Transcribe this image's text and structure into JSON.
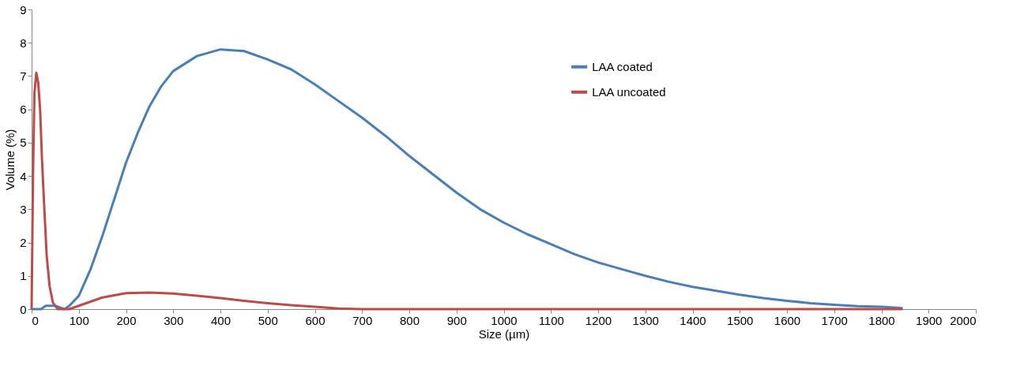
{
  "chart_data": {
    "type": "line",
    "xlabel": "Size (µm)",
    "ylabel": "Volume (%)",
    "xlim": [
      0,
      2000
    ],
    "xticks": [
      0,
      100,
      200,
      300,
      400,
      500,
      600,
      700,
      800,
      900,
      1000,
      1100,
      1200,
      1300,
      1400,
      1500,
      1600,
      1700,
      1800,
      1900,
      2000
    ],
    "ylim": [
      0,
      9
    ],
    "yticks": [
      0,
      1,
      2,
      3,
      4,
      5,
      6,
      7,
      8,
      9
    ],
    "grid": false,
    "legend": "top right",
    "marker": "none",
    "line_style": "solid",
    "series": [
      {
        "name": "LAA coated",
        "color": "#4a7ebb",
        "x": [
          0,
          20,
          30,
          50,
          60,
          70,
          80,
          100,
          125,
          150,
          175,
          200,
          225,
          250,
          275,
          300,
          350,
          400,
          450,
          500,
          550,
          600,
          650,
          700,
          750,
          800,
          850,
          900,
          950,
          1000,
          1050,
          1100,
          1150,
          1200,
          1250,
          1300,
          1350,
          1400,
          1450,
          1500,
          1550,
          1600,
          1650,
          1700,
          1750,
          1800,
          1845
        ],
        "values": [
          0,
          0,
          0.1,
          0.1,
          0.05,
          0,
          0.1,
          0.4,
          1.2,
          2.2,
          3.3,
          4.4,
          5.3,
          6.1,
          6.7,
          7.15,
          7.6,
          7.8,
          7.75,
          7.5,
          7.2,
          6.75,
          6.25,
          5.75,
          5.2,
          4.6,
          4.05,
          3.5,
          3.0,
          2.6,
          2.25,
          1.95,
          1.65,
          1.4,
          1.2,
          1.0,
          0.82,
          0.67,
          0.55,
          0.43,
          0.33,
          0.25,
          0.18,
          0.13,
          0.09,
          0.07,
          0.03
        ]
      },
      {
        "name": "LAA uncoated",
        "color": "#be4b48",
        "x": [
          0,
          3,
          6,
          10,
          14,
          18,
          22,
          27,
          32,
          38,
          45,
          55,
          80,
          100,
          150,
          200,
          250,
          300,
          350,
          400,
          450,
          500,
          550,
          600,
          650,
          700,
          1000,
          1500,
          1845
        ],
        "values": [
          0,
          4,
          6.5,
          7.1,
          6.8,
          6,
          4.5,
          3,
          1.6,
          0.7,
          0.2,
          0,
          0,
          0.1,
          0.35,
          0.48,
          0.5,
          0.47,
          0.4,
          0.33,
          0.25,
          0.18,
          0.12,
          0.07,
          0.02,
          0,
          0,
          0,
          0
        ]
      }
    ]
  }
}
